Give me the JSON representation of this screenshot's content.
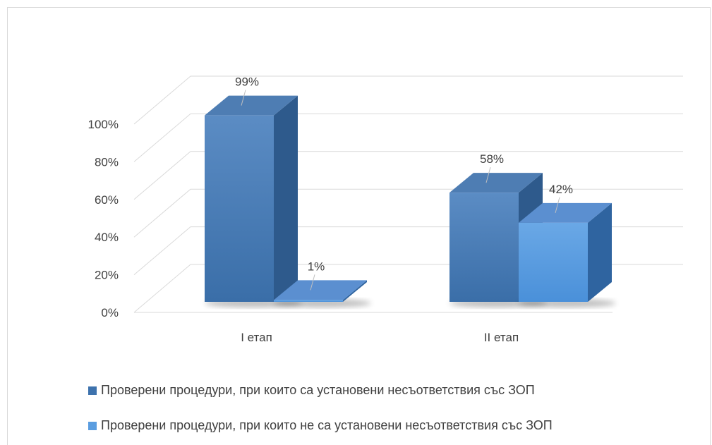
{
  "chart_data": {
    "type": "bar",
    "categories": [
      "I етап",
      "II  етап"
    ],
    "series": [
      {
        "name": "Проверени процедури, при които са установени несъответствия със ЗОП",
        "values": [
          99,
          58
        ],
        "labels": [
          "99%",
          "58%"
        ],
        "color": "#3d72ad"
      },
      {
        "name": "Проверени процедури, при които не са установени несъответствия със ЗОП",
        "values": [
          1,
          42
        ],
        "labels": [
          "1%",
          "42%"
        ],
        "color": "#5a9de0"
      }
    ],
    "y_ticks": [
      "0%",
      "20%",
      "40%",
      "60%",
      "80%",
      "100%"
    ],
    "ylim": [
      0,
      100
    ],
    "grid": true,
    "legend_position": "bottom",
    "style": "3d-clustered-bar"
  }
}
